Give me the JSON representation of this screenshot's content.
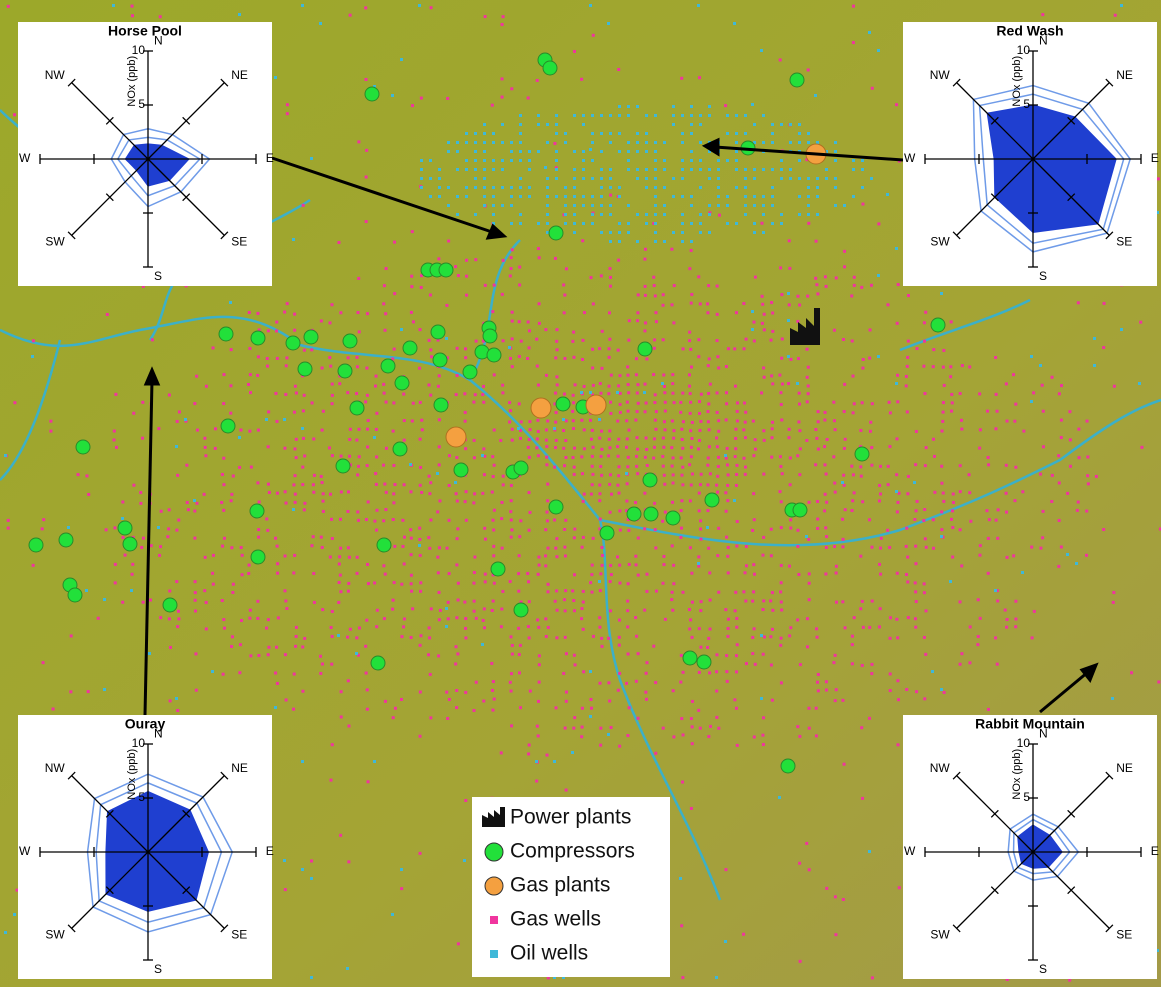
{
  "chart_data": [
    {
      "type": "radar",
      "title": "Horse Pool",
      "y_label": "NOx (ppb)",
      "categories": [
        "N",
        "NE",
        "E",
        "SE",
        "S",
        "SW",
        "W",
        "NW"
      ],
      "ylim": [
        0,
        10
      ],
      "yticks": [
        5,
        10
      ],
      "series": [
        {
          "color": "#1f3fd0",
          "values": [
            1.4,
            1.8,
            3.8,
            2.8,
            2.5,
            1.5,
            2.1,
            1.8
          ]
        },
        {
          "color": "#6f9be8",
          "values": [
            2.0,
            2.5,
            4.8,
            3.5,
            3.4,
            2.2,
            2.8,
            2.5
          ]
        },
        {
          "color": "#6f9be8",
          "values": [
            2.8,
            3.2,
            5.7,
            4.3,
            4.4,
            3.0,
            3.4,
            3.2
          ]
        }
      ]
    },
    {
      "type": "radar",
      "title": "Red Wash",
      "y_label": "NOx (ppb)",
      "categories": [
        "N",
        "NE",
        "E",
        "SE",
        "S",
        "SW",
        "W",
        "NW"
      ],
      "ylim": [
        0,
        10
      ],
      "yticks": [
        5,
        10
      ],
      "series": [
        {
          "color": "#1f3fd0",
          "values": [
            5.0,
            5.5,
            7.7,
            8.5,
            6.8,
            5.0,
            3.6,
            6.0
          ]
        },
        {
          "color": "#6f9be8",
          "values": [
            6.0,
            6.5,
            8.4,
            9.2,
            7.8,
            6.0,
            4.6,
            7.0
          ]
        },
        {
          "color": "#6f9be8",
          "values": [
            6.8,
            7.3,
            9.0,
            9.7,
            8.6,
            6.8,
            5.4,
            7.8
          ]
        }
      ]
    },
    {
      "type": "radar",
      "title": "Ouray",
      "y_label": "NOx (ppb)",
      "categories": [
        "N",
        "NE",
        "E",
        "SE",
        "S",
        "SW",
        "W",
        "NW"
      ],
      "ylim": [
        0,
        10
      ],
      "yticks": [
        5,
        10
      ],
      "series": [
        {
          "color": "#1f3fd0",
          "values": [
            5.6,
            5.5,
            5.6,
            6.3,
            5.5,
            5.5,
            3.9,
            5.3
          ]
        },
        {
          "color": "#6f9be8",
          "values": [
            6.4,
            6.4,
            6.8,
            7.3,
            6.5,
            6.4,
            4.8,
            6.2
          ]
        },
        {
          "color": "#6f9be8",
          "values": [
            7.2,
            7.2,
            7.8,
            8.2,
            7.4,
            7.2,
            5.6,
            7.0
          ]
        }
      ]
    },
    {
      "type": "radar",
      "title": "Rabbit Mountain",
      "y_label": "NOx (ppb)",
      "categories": [
        "N",
        "NE",
        "E",
        "SE",
        "S",
        "SW",
        "W",
        "NW"
      ],
      "ylim": [
        0,
        10
      ],
      "yticks": [
        5,
        10
      ],
      "series": [
        {
          "color": "#1f3fd0",
          "values": [
            2.5,
            2.2,
            2.7,
            2.0,
            1.5,
            1.5,
            1.3,
            2.0
          ]
        },
        {
          "color": "#6f9be8",
          "values": [
            3.0,
            2.8,
            3.4,
            2.6,
            2.0,
            2.0,
            1.8,
            2.5
          ]
        },
        {
          "color": "#6f9be8",
          "values": [
            3.5,
            3.3,
            4.2,
            3.2,
            2.6,
            2.5,
            2.3,
            3.0
          ]
        }
      ]
    }
  ],
  "legend": {
    "items": [
      {
        "label": "Power plants",
        "color": "#111111"
      },
      {
        "label": "Compressors",
        "color": "#22e03a"
      },
      {
        "label": "Gas plants",
        "color": "#f4a040"
      },
      {
        "label": "Gas wells",
        "color": "#f0359e"
      },
      {
        "label": "Oil wells",
        "color": "#3fb8d8"
      }
    ]
  }
}
